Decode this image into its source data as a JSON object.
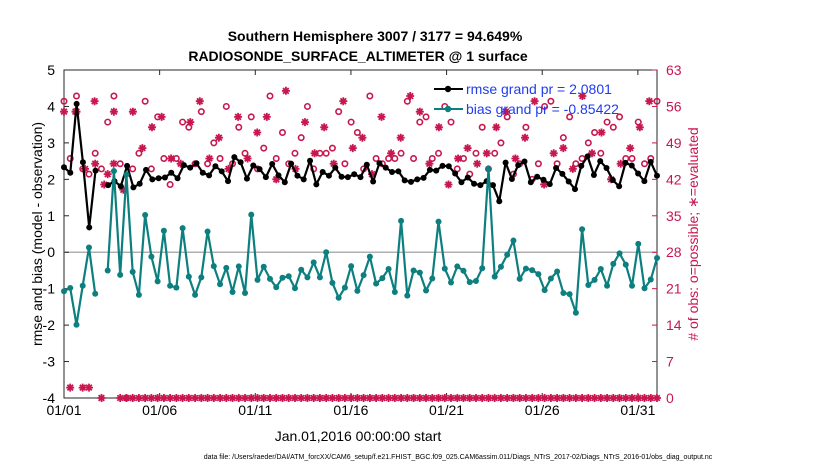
{
  "chart_data": {
    "type": "line",
    "title": "Southern Hemisphere 3007 / 3177 = 94.649%",
    "subtitle": "RADIOSONDE_SURFACE_ALTIMETER @ 1 surface",
    "xlabel": "Jan.01,2016 00:00:00 start",
    "ylabel": "rmse and bias (model - observation)",
    "y2label": "# of obs: o=possible; ∗=evaluated",
    "xlim": [
      0,
      31
    ],
    "ylim": [
      -4,
      5
    ],
    "y2lim": [
      0,
      63
    ],
    "x_ticks": [
      0,
      5,
      10,
      15,
      20,
      25,
      30
    ],
    "x_tick_labels": [
      "01/01",
      "01/06",
      "01/11",
      "01/16",
      "01/21",
      "01/26",
      "01/31"
    ],
    "y_ticks": [
      -4,
      -3,
      -2,
      -1,
      0,
      1,
      2,
      3,
      4,
      5
    ],
    "y_tick_labels": [
      "-4",
      "-3",
      "-2",
      "-1",
      "0",
      "1",
      "2",
      "3",
      "4",
      "5"
    ],
    "y2_ticks": [
      0,
      7,
      14,
      21,
      28,
      35,
      42,
      49,
      56,
      63
    ],
    "y2_tick_labels": [
      "0",
      "7",
      "14",
      "21",
      "28",
      "35",
      "42",
      "49",
      "56",
      "63"
    ],
    "zero_line": 0,
    "legend_position": "top-right",
    "series": [
      {
        "name": "rmse",
        "legend": "rmse grand pr = 2.0801",
        "color": "#000000",
        "values": [
          2.33,
          2.18,
          4.07,
          2.47,
          0.68,
          2.24,
          null,
          1.84,
          1.95,
          1.81,
          2.37,
          1.78,
          1.88,
          2.26,
          2.0,
          2.03,
          2.05,
          2.18,
          2.03,
          2.39,
          2.32,
          2.44,
          2.18,
          2.11,
          2.36,
          2.22,
          1.95,
          2.61,
          2.47,
          2.02,
          2.38,
          2.28,
          2.06,
          2.42,
          2.11,
          1.92,
          2.43,
          2.1,
          2.0,
          2.51,
          1.86,
          2.2,
          2.1,
          2.32,
          2.07,
          2.06,
          2.14,
          2.06,
          2.4,
          1.94,
          2.44,
          2.32,
          2.2,
          2.22,
          1.97,
          1.93,
          2.0,
          2.04,
          2.26,
          2.24,
          2.37,
          2.36,
          2.16,
          1.92,
          2.05,
          1.88,
          1.84,
          1.95,
          1.84,
          1.4,
          2.46,
          2.01,
          2.39,
          2.49,
          1.92,
          2.07,
          1.99,
          1.87,
          2.31,
          2.15,
          1.94,
          1.73,
          2.37,
          2.63,
          2.12,
          2.5,
          2.31,
          1.98,
          1.81,
          2.45,
          2.38,
          2.16,
          1.95,
          2.48,
          2.1
        ]
      },
      {
        "name": "bias",
        "legend": "bias grand pr = -0.85422",
        "color": "#0d7f7f",
        "values": [
          -1.07,
          -0.98,
          -1.99,
          -0.92,
          0.13,
          -1.14,
          null,
          -0.5,
          2.23,
          -0.62,
          2.13,
          -0.54,
          -1.17,
          1.02,
          -0.12,
          -0.8,
          0.59,
          -0.92,
          -0.97,
          0.66,
          -0.67,
          -1.17,
          -0.69,
          0.57,
          -0.38,
          -0.88,
          -0.43,
          -1.09,
          -0.39,
          -1.12,
          1.03,
          -0.76,
          -0.4,
          -0.73,
          -0.96,
          -0.7,
          -0.66,
          -0.99,
          -0.48,
          -0.69,
          -0.28,
          -0.69,
          0.0,
          -0.84,
          -1.25,
          -0.97,
          -0.38,
          -1.06,
          -0.63,
          -0.12,
          -0.86,
          -0.71,
          -0.46,
          -1.09,
          0.86,
          -1.19,
          -0.5,
          -0.56,
          -1.05,
          -0.72,
          0.84,
          -0.45,
          -0.83,
          -0.39,
          -0.51,
          -0.82,
          -0.79,
          -0.44,
          2.29,
          -0.67,
          -0.4,
          -0.07,
          0.32,
          -0.73,
          -0.45,
          -0.49,
          -0.6,
          -1.04,
          -0.72,
          -0.53,
          -1.12,
          -1.15,
          -1.66,
          0.63,
          -0.9,
          -0.76,
          -0.46,
          -0.92,
          -0.32,
          -0.03,
          -0.34,
          -0.92,
          0.23,
          -0.99,
          -0.75,
          -0.16
        ]
      },
      {
        "name": "possible",
        "marker": "o",
        "axis": "right",
        "color": "#c8174f",
        "values": [
          57,
          46,
          58,
          44,
          43,
          47,
          44,
          53,
          58,
          45,
          0,
          44,
          47,
          57,
          44,
          54,
          46,
          41,
          46,
          53,
          52,
          45,
          55,
          45,
          49,
          46,
          56,
          45,
          52,
          47,
          54,
          44,
          48,
          58,
          46,
          51,
          45,
          47,
          50,
          56,
          44,
          47,
          47,
          48,
          55,
          45,
          53,
          51,
          44,
          58,
          46,
          45,
          46,
          46,
          47,
          57,
          46,
          53,
          54,
          46,
          47,
          56,
          53,
          44,
          46,
          43,
          47,
          52,
          44,
          47,
          49,
          54,
          43,
          45,
          52,
          42,
          45,
          56,
          57,
          45,
          50,
          54,
          45,
          46,
          49,
          51,
          47,
          53,
          52,
          54,
          46,
          46,
          53,
          45,
          46,
          57
        ]
      },
      {
        "name": "evaluated",
        "marker": "*",
        "axis": "right",
        "color": "#c8174f",
        "values": [
          55,
          2,
          55,
          2,
          2,
          45,
          0,
          43,
          55,
          0,
          0,
          0,
          0,
          0,
          0,
          0,
          0,
          0,
          0,
          0,
          0,
          0,
          0,
          0,
          0,
          0,
          0,
          0,
          0,
          0,
          0,
          0,
          0,
          0,
          0,
          0,
          0,
          0,
          0,
          0,
          0,
          0,
          0,
          0,
          0,
          0,
          0,
          0,
          0,
          0,
          0,
          0,
          0,
          0,
          0,
          0,
          0,
          0,
          0,
          0,
          0,
          0,
          0,
          0,
          0,
          0,
          0,
          0,
          0,
          0,
          0,
          0,
          0,
          0,
          0,
          0,
          0,
          0,
          0,
          0,
          0,
          0,
          0,
          0,
          0,
          0,
          0,
          0,
          0,
          0,
          0,
          0,
          0,
          0,
          0,
          0
        ]
      }
    ],
    "evaluated_upper": [
      55,
      44,
      57,
      41,
      45,
      40,
      55,
      48,
      52,
      54,
      46,
      45,
      53,
      57,
      46,
      50,
      44,
      54,
      46,
      51,
      54,
      42,
      59,
      44,
      53,
      47,
      52,
      45,
      57,
      48,
      50,
      43,
      54,
      47,
      50,
      58,
      55,
      45,
      52,
      41,
      46,
      48,
      45,
      47,
      52,
      55,
      46,
      50,
      57,
      41,
      47,
      48,
      44,
      58,
      47,
      51,
      42,
      45,
      48,
      52,
      57
    ]
  },
  "footer": "data file: /Users/raeder/DAI/ATM_forcXX/CAM6_setup/f.e21.FHIST_BGC.f09_025.CAM6assim.011/Diags_NTrS_2017-02/Diags_NTrS_2016-01/obs_diag_output.nc"
}
